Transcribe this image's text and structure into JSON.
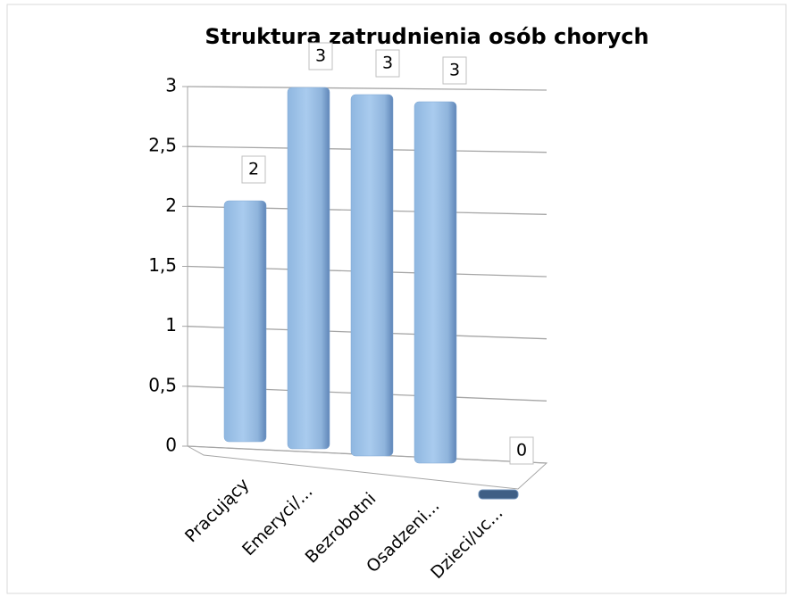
{
  "chart_data": {
    "type": "bar",
    "title": "Struktura zatrudnienia osób chorych",
    "categories": [
      "Pracujący",
      "Emeryci/...",
      "Bezrobotni",
      "Osadzeni...",
      "Dzieci/uc..."
    ],
    "values": [
      2,
      3,
      3,
      3,
      0
    ],
    "color": "#9dc3e6",
    "ylim": [
      0,
      3
    ],
    "yticks": [
      0,
      {
        "value": 0.5,
        "label": "0,5"
      },
      1,
      {
        "value": 1.5,
        "label": "1,5"
      },
      2,
      {
        "value": 2.5,
        "label": "2,5"
      },
      3
    ],
    "grid": true
  }
}
